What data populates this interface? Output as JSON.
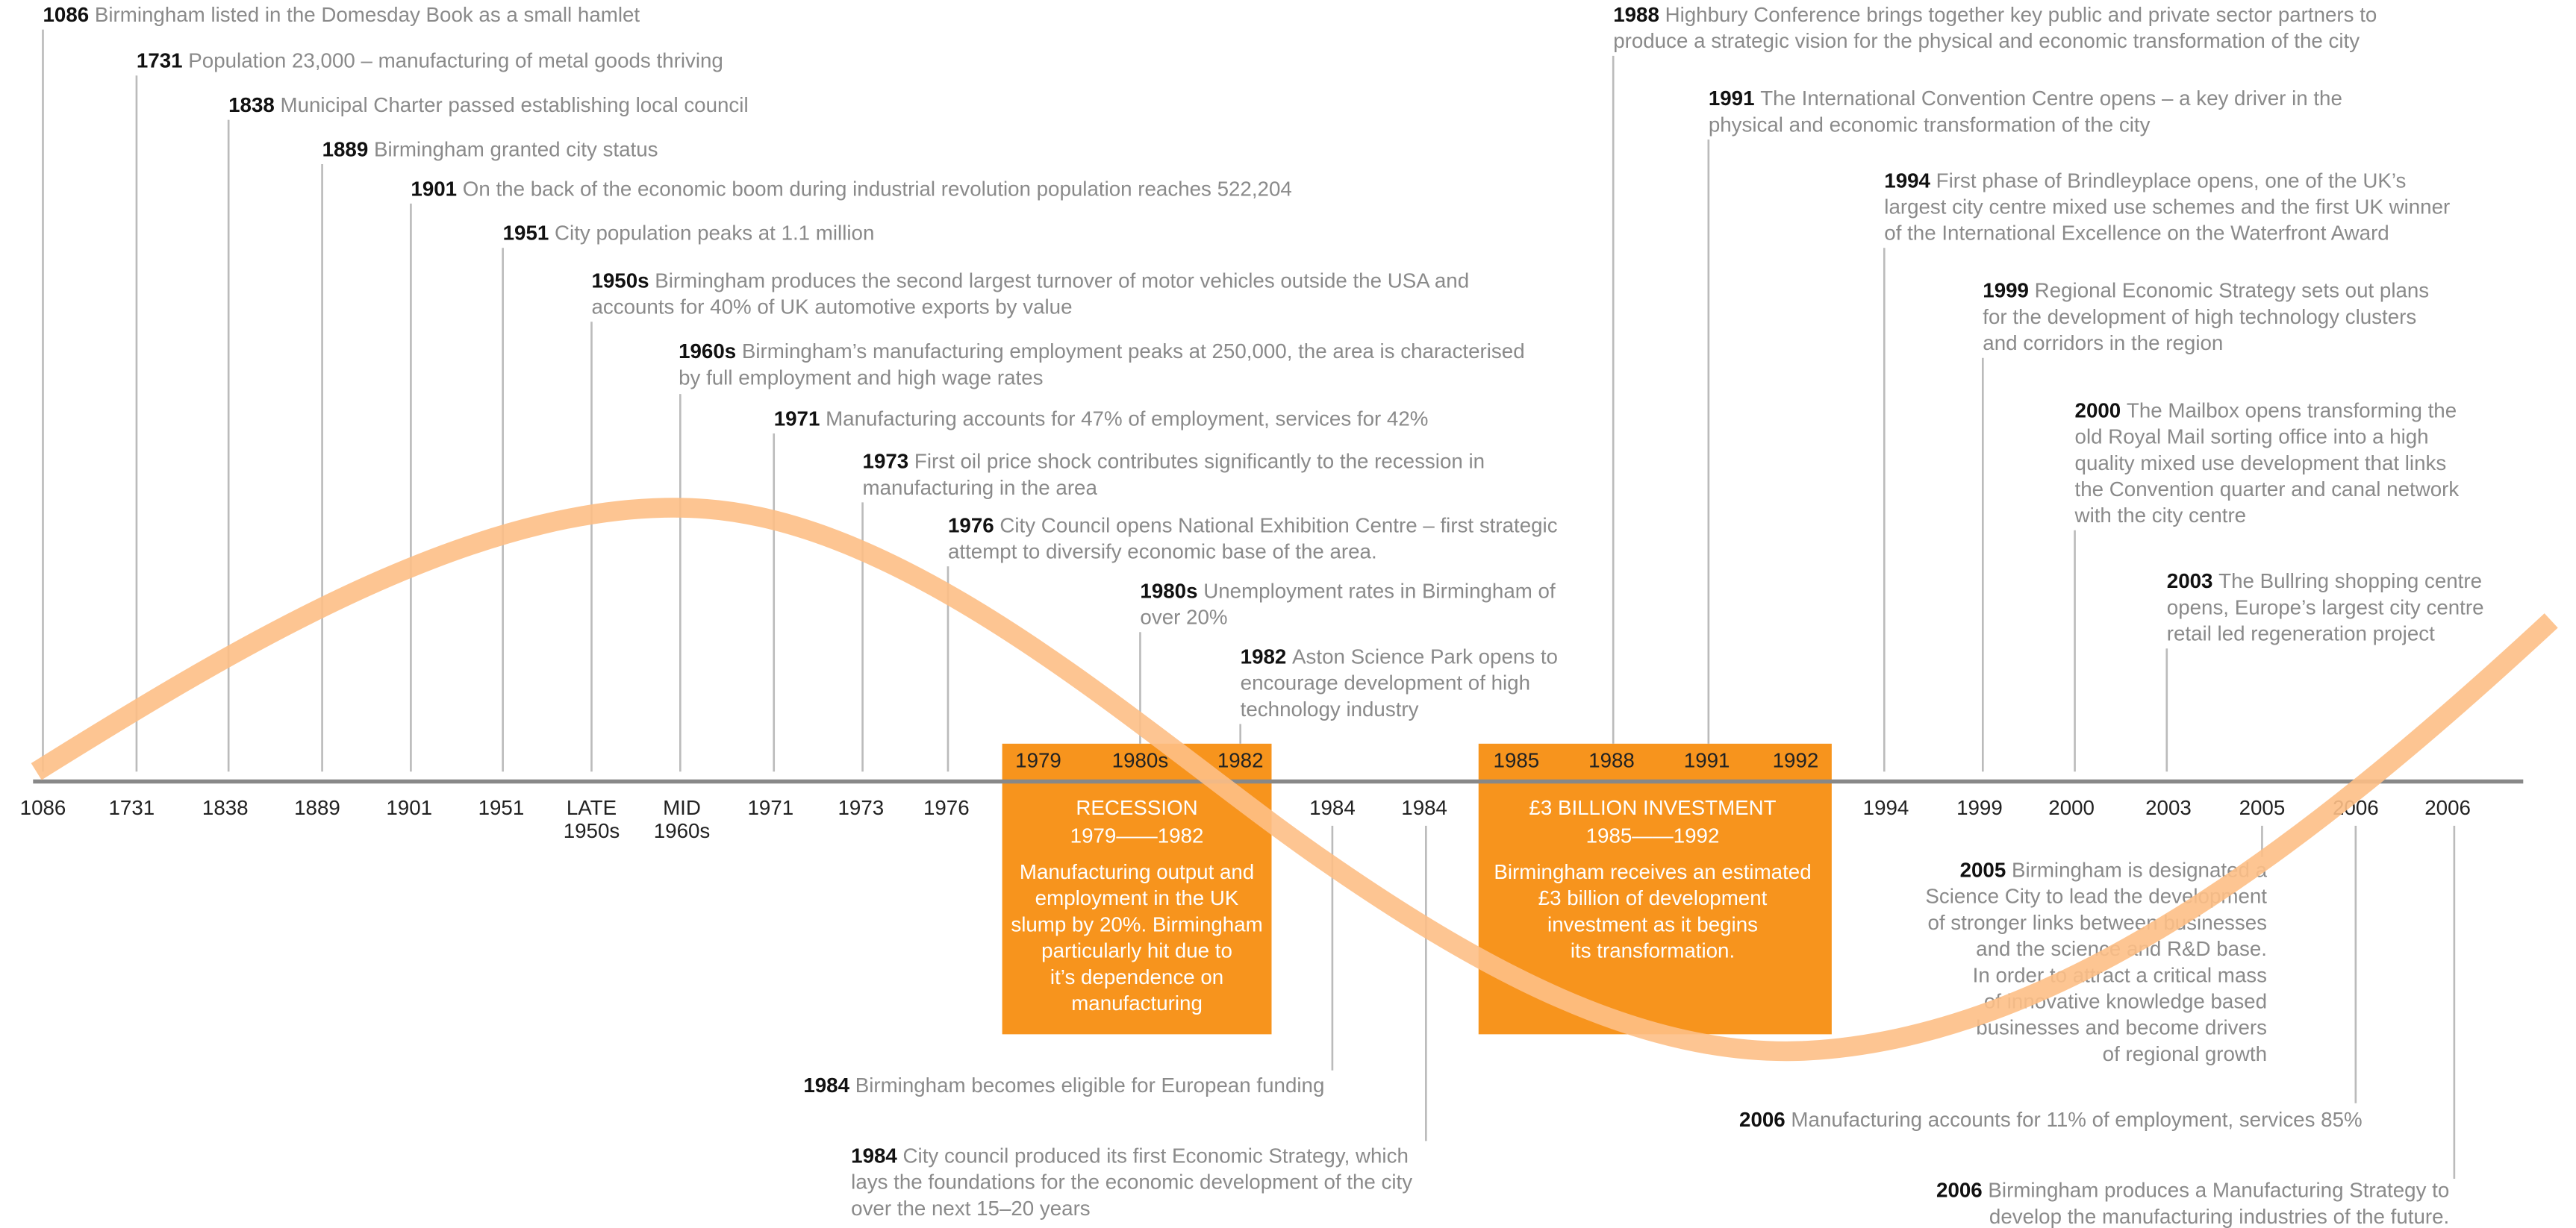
{
  "events": [
    {
      "year": "1086",
      "lines": [
        "Birmingham listed in the Domesday Book as a small hamlet"
      ]
    },
    {
      "year": "1731",
      "lines": [
        "Population 23,000 – manufacturing of metal goods thriving"
      ]
    },
    {
      "year": "1838",
      "lines": [
        "Municipal Charter passed establishing local council"
      ]
    },
    {
      "year": "1889",
      "lines": [
        "Birmingham granted city status"
      ]
    },
    {
      "year": "1901",
      "lines": [
        "On the back of the economic boom during industrial revolution population reaches 522,204"
      ]
    },
    {
      "year": "1951",
      "lines": [
        "City population peaks at 1.1 million"
      ]
    },
    {
      "year": "1950s",
      "lines": [
        "Birmingham produces the second largest turnover of motor vehicles outside the USA and",
        "accounts for 40% of UK automotive exports by value"
      ]
    },
    {
      "year": "1960s",
      "lines": [
        "Birmingham’s manufacturing employment peaks at 250,000, the area is characterised",
        "by full employment and high wage rates"
      ]
    },
    {
      "year": "1971",
      "lines": [
        "Manufacturing accounts for 47% of employment, services for 42%"
      ]
    },
    {
      "year": "1973",
      "lines": [
        "First oil price shock contributes significantly to the recession in",
        "manufacturing in the area"
      ]
    },
    {
      "year": "1976",
      "lines": [
        "City Council opens National Exhibition Centre – first strategic",
        "attempt to diversify economic base of the area."
      ]
    },
    {
      "year": "1980s",
      "lines": [
        "Unemployment rates in Birmingham of",
        "over 20%"
      ]
    },
    {
      "year": "1982",
      "lines": [
        "Aston Science Park opens to",
        "encourage development of high",
        "technology industry"
      ]
    },
    {
      "year": "1988",
      "lines": [
        "Highbury Conference brings together key public and private sector partners to",
        "produce a strategic vision for the physical and economic transformation of the city"
      ]
    },
    {
      "year": "1991",
      "lines": [
        "The International Convention Centre opens – a key driver in the",
        "physical and economic transformation of the city"
      ]
    },
    {
      "year": "1994",
      "lines": [
        "First phase of Brindleyplace opens, one of the UK’s",
        "largest city centre mixed use schemes and the first UK winner",
        "of the International Excellence on the Waterfront Award"
      ]
    },
    {
      "year": "1999",
      "lines": [
        "Regional Economic Strategy sets out plans",
        "for the development of high technology clusters",
        "and corridors in the region"
      ]
    },
    {
      "year": "2000",
      "lines": [
        "The Mailbox opens transforming the",
        "old Royal Mail sorting office into a high",
        "quality mixed use development that links",
        "the Convention quarter and canal network",
        "with the city centre"
      ]
    },
    {
      "year": "2003",
      "lines": [
        "The Bullring shopping centre",
        "opens, Europe’s largest city centre",
        "retail led regeneration project"
      ]
    },
    {
      "year": "1984",
      "lines": [
        "Birmingham becomes eligible for European funding"
      ]
    },
    {
      "year": "1984",
      "lines": [
        "City council produced its first Economic Strategy, which",
        "lays the foundations for the economic development of the city",
        "over the next 15–20 years"
      ]
    },
    {
      "year": "2005",
      "lines": [
        "Birmingham is designated a",
        "Science City to lead the development",
        "of stronger links between businesses",
        "and the science and R&D base.",
        "In order to attract a critical mass",
        "of innovative knowledge based",
        "businesses and become drivers",
        "of regional growth"
      ]
    },
    {
      "year": "2006",
      "lines": [
        "Manufacturing accounts for 11% of employment, services 85%"
      ]
    },
    {
      "year": "2006",
      "lines": [
        "Birmingham produces a Manufacturing Strategy to",
        "develop the manufacturing industries of the future."
      ]
    }
  ],
  "axis_labels": [
    [
      "1086"
    ],
    [
      "1731"
    ],
    [
      "1838"
    ],
    [
      "1889"
    ],
    [
      "1901"
    ],
    [
      "1951"
    ],
    [
      "LATE",
      "1950s"
    ],
    [
      "MID",
      "1960s"
    ],
    [
      "1971"
    ],
    [
      "1973"
    ],
    [
      "1976"
    ],
    [
      "1984"
    ],
    [
      "1984"
    ],
    [
      "1994"
    ],
    [
      "1999"
    ],
    [
      "2000"
    ],
    [
      "2003"
    ],
    [
      "2005"
    ],
    [
      "2006"
    ],
    [
      "2006"
    ]
  ],
  "recession": {
    "years": [
      "1979",
      "1980s",
      "1982"
    ],
    "title": "RECESSION",
    "period": "1979——1982",
    "description": [
      "Manufacturing output and",
      "employment in the UK",
      "slump by 20%. Birmingham",
      "particularly hit due to",
      "it’s dependence on",
      "manufacturing"
    ]
  },
  "investment": {
    "years": [
      "1985",
      "1988",
      "1991",
      "1992"
    ],
    "title": "£3 BILLION INVESTMENT",
    "period": "1985——1992",
    "description": [
      "Birmingham receives an estimated",
      "£3 billion of development",
      "investment as it begins",
      "its transformation."
    ]
  }
}
